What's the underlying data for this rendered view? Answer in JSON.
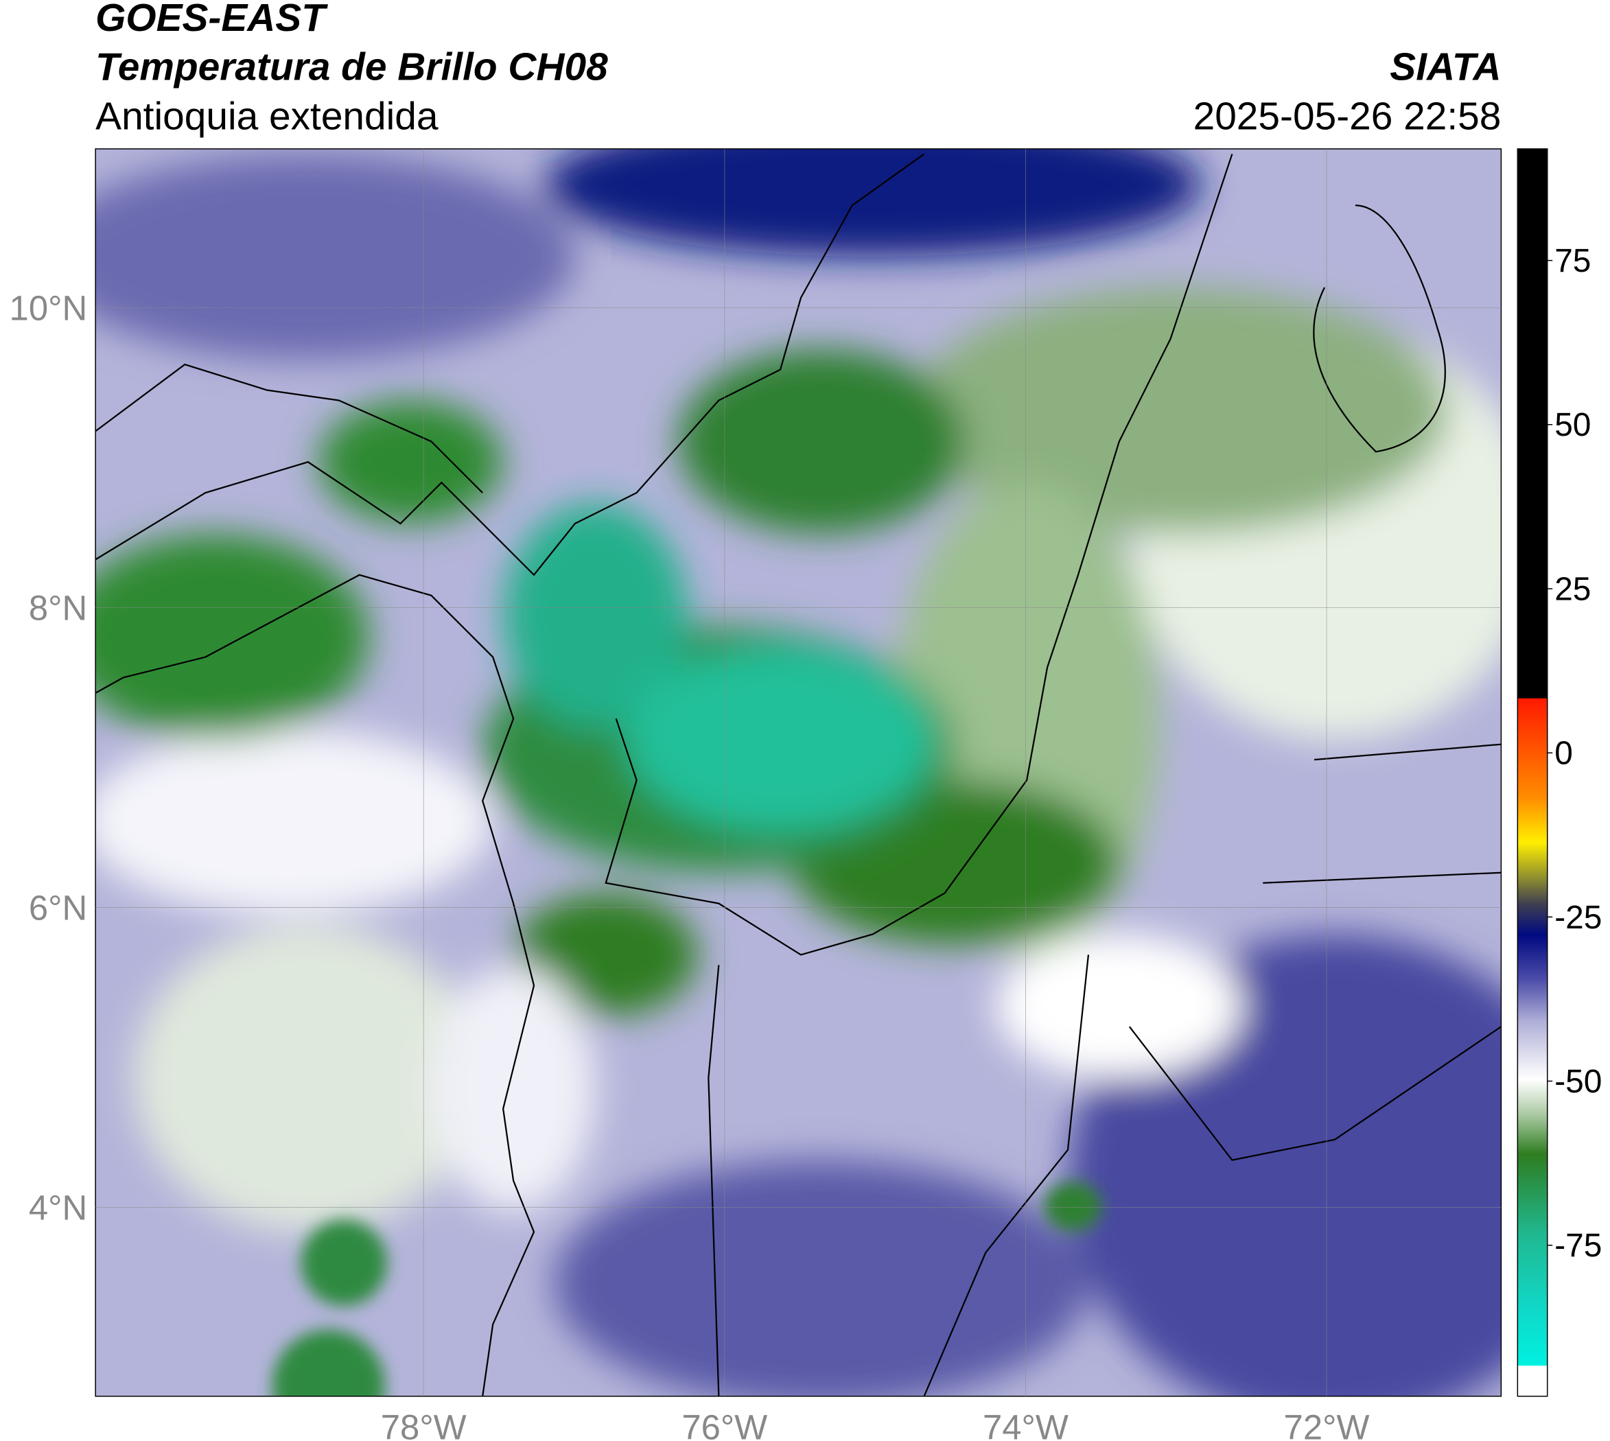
{
  "header": {
    "title": "GOES-EAST",
    "subtitle": "Temperatura de Brillo CH08",
    "region": "Antioquia extendida",
    "agency": "SIATA",
    "datetime": "2025-05-26 22:58"
  },
  "chart_data": {
    "type": "map",
    "xlim": [
      -80.18,
      -70.84
    ],
    "ylim": [
      2.74,
      11.06
    ],
    "xticks": [
      {
        "value": -78,
        "label": "78°W"
      },
      {
        "value": -76,
        "label": "76°W"
      },
      {
        "value": -74,
        "label": "74°W"
      },
      {
        "value": -72,
        "label": "72°W"
      }
    ],
    "yticks": [
      {
        "value": 4,
        "label": "4°N"
      },
      {
        "value": 6,
        "label": "6°N"
      },
      {
        "value": 8,
        "label": "8°N"
      },
      {
        "value": 10,
        "label": "10°N"
      }
    ],
    "grid": true,
    "colorbar": {
      "lim": [
        -98,
        92
      ],
      "ticks": [
        -75,
        -50,
        -25,
        0,
        25,
        50,
        75
      ]
    }
  }
}
